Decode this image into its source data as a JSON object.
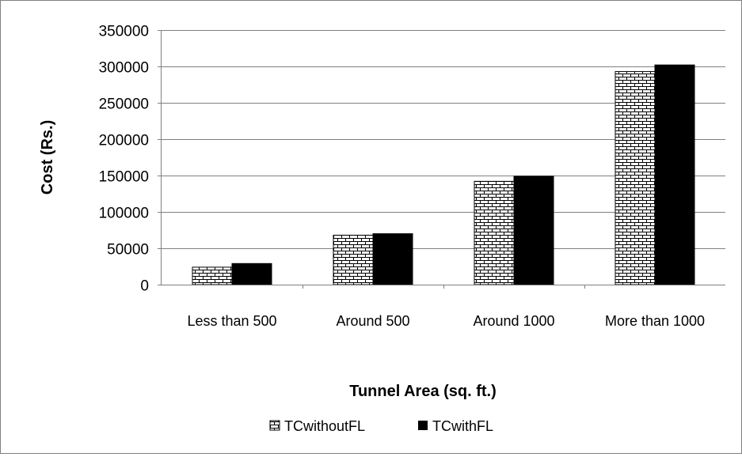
{
  "chart_data": {
    "type": "bar",
    "title": "",
    "xlabel": "Tunnel Area (sq. ft.)",
    "ylabel": "Cost (Rs.)",
    "ylim": [
      0,
      350000
    ],
    "yticks": [
      0,
      50000,
      100000,
      150000,
      200000,
      250000,
      300000,
      350000
    ],
    "yticks_text": [
      "0",
      "50000",
      "100000",
      "150000",
      "200000",
      "250000",
      "300000",
      "350000"
    ],
    "grid": true,
    "legend_position": "bottom",
    "categories": [
      "Less than 500",
      "Around 500",
      "Around 1000",
      "More than 1000"
    ],
    "series": [
      {
        "name": "TCwithoutFL",
        "values": [
          24000,
          68000,
          142000,
          293000
        ],
        "pattern": "brick",
        "color": "#000000"
      },
      {
        "name": "TCwithFL",
        "values": [
          29000,
          70000,
          149000,
          302000
        ],
        "pattern": "solid",
        "color": "#000000"
      }
    ]
  }
}
